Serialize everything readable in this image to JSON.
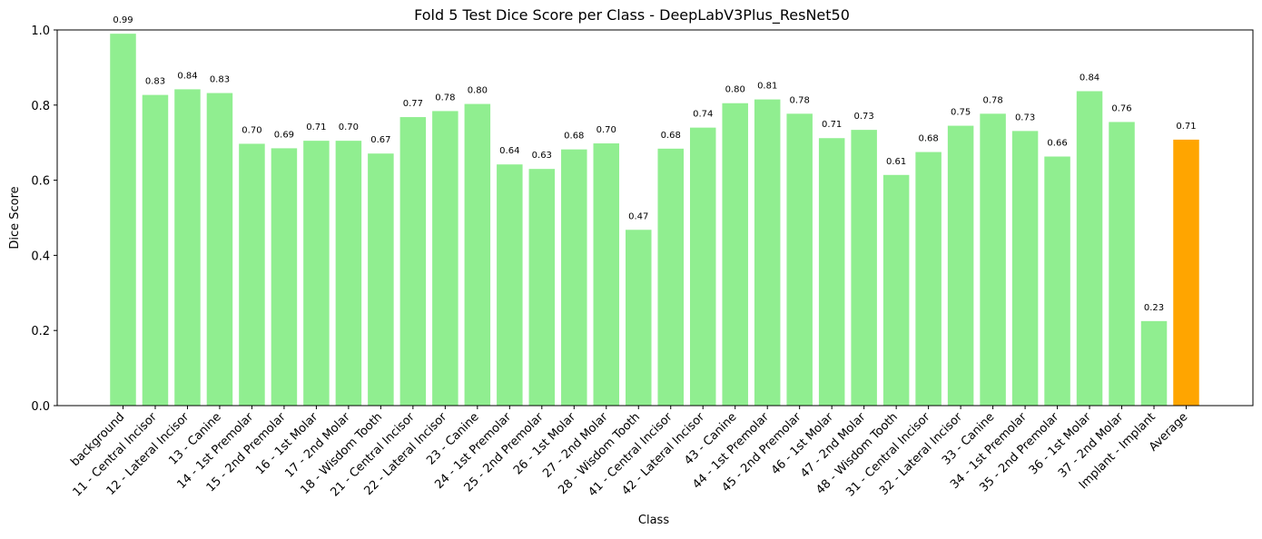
{
  "chart_data": {
    "type": "bar",
    "title": "Fold 5 Test Dice Score per Class - DeepLabV3Plus_ResNet50",
    "xlabel": "Class",
    "ylabel": "Dice Score",
    "ylim": [
      0,
      1.0
    ],
    "yticks": [
      "0.0",
      "0.2",
      "0.4",
      "0.6",
      "0.8",
      "1.0"
    ],
    "grid": false,
    "legend": "none",
    "categories": [
      "background",
      "11 - Central Incisor",
      "12 - Lateral Incisor",
      "13 - Canine",
      "14 - 1st Premolar",
      "15 - 2nd Premolar",
      "16 - 1st Molar",
      "17 - 2nd Molar",
      "18 - Wisdom Tooth",
      "21 - Central Incisor",
      "22 - Lateral Incisor",
      "23 - Canine",
      "24 - 1st Premolar",
      "25 - 2nd Premolar",
      "26 - 1st Molar",
      "27 - 2nd Molar",
      "28 - Wisdom Tooth",
      "41 - Central Incisor",
      "42 - Lateral Incisor",
      "43 - Canine",
      "44 - 1st Premolar",
      "45 - 2nd Premolar",
      "46 - 1st Molar",
      "47 - 2nd Molar",
      "48 - Wisdom Tooth",
      "31 - Central Incisor",
      "32 - Lateral Incisor",
      "33 - Canine",
      "34 - 1st Premolar",
      "35 - 2nd Premolar",
      "36 - 1st Molar",
      "37 - 2nd Molar",
      "Implant - Implant",
      "Average"
    ],
    "values": [
      0.99,
      0.827,
      0.842,
      0.832,
      0.697,
      0.685,
      0.705,
      0.705,
      0.671,
      0.768,
      0.784,
      0.803,
      0.642,
      0.63,
      0.682,
      0.698,
      0.468,
      0.684,
      0.74,
      0.805,
      0.815,
      0.777,
      0.712,
      0.734,
      0.614,
      0.675,
      0.745,
      0.777,
      0.731,
      0.663,
      0.837,
      0.755,
      0.225,
      0.708
    ],
    "value_labels": [
      "0.99",
      "0.83",
      "0.84",
      "0.83",
      "0.70",
      "0.69",
      "0.71",
      "0.70",
      "0.67",
      "0.77",
      "0.78",
      "0.80",
      "0.64",
      "0.63",
      "0.68",
      "0.70",
      "0.47",
      "0.68",
      "0.74",
      "0.80",
      "0.81",
      "0.78",
      "0.71",
      "0.73",
      "0.61",
      "0.68",
      "0.75",
      "0.78",
      "0.73",
      "0.66",
      "0.84",
      "0.76",
      "0.23",
      "0.71"
    ],
    "colors": {
      "bar": "#90ee90",
      "highlight_bar": "#ffa500",
      "axis": "#000000",
      "background": "#ffffff"
    },
    "highlight_category": "Average"
  }
}
